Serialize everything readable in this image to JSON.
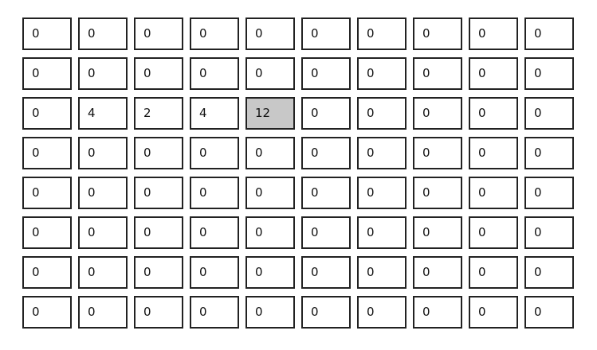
{
  "grid": {
    "rows": [
      [
        "0",
        "0",
        "0",
        "0",
        "0",
        "0",
        "0",
        "0",
        "0",
        "0"
      ],
      [
        "0",
        "0",
        "0",
        "0",
        "0",
        "0",
        "0",
        "0",
        "0",
        "0"
      ],
      [
        "0",
        "4",
        "2",
        "4",
        "12",
        "0",
        "0",
        "0",
        "0",
        "0"
      ],
      [
        "0",
        "0",
        "0",
        "0",
        "0",
        "0",
        "0",
        "0",
        "0",
        "0"
      ],
      [
        "0",
        "0",
        "0",
        "0",
        "0",
        "0",
        "0",
        "0",
        "0",
        "0"
      ],
      [
        "0",
        "0",
        "0",
        "0",
        "0",
        "0",
        "0",
        "0",
        "0",
        "0"
      ],
      [
        "0",
        "0",
        "0",
        "0",
        "0",
        "0",
        "0",
        "0",
        "0",
        "0"
      ],
      [
        "0",
        "0",
        "0",
        "0",
        "0",
        "0",
        "0",
        "0",
        "0",
        "0"
      ]
    ],
    "selected_cell": {
      "row": 2,
      "col": 4
    },
    "selected_color": "#c8c8c8"
  }
}
